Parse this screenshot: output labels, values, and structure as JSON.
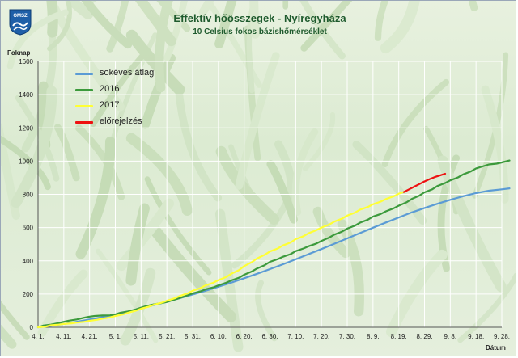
{
  "chart_data": {
    "type": "line",
    "title": "Effektív hőösszegek - Nyíregyháza",
    "subtitle": "10 Celsius fokos bázishőmérséklet",
    "ylabel": "Foknap",
    "xlabel": "Dátum",
    "logo_text": "OMSZ",
    "ylim": [
      0,
      1600
    ],
    "yticks": [
      0,
      200,
      400,
      600,
      800,
      1000,
      1200,
      1400,
      1600
    ],
    "xlim": [
      0,
      180
    ],
    "xticks": [
      {
        "x": 0,
        "label": "4. 1."
      },
      {
        "x": 10,
        "label": "4. 11."
      },
      {
        "x": 20,
        "label": "4. 21."
      },
      {
        "x": 30,
        "label": "5. 1."
      },
      {
        "x": 40,
        "label": "5. 11."
      },
      {
        "x": 50,
        "label": "5. 21."
      },
      {
        "x": 60,
        "label": "5. 31."
      },
      {
        "x": 70,
        "label": "6. 10."
      },
      {
        "x": 80,
        "label": "6. 20."
      },
      {
        "x": 90,
        "label": "6. 30."
      },
      {
        "x": 100,
        "label": "7. 10."
      },
      {
        "x": 110,
        "label": "7. 20."
      },
      {
        "x": 120,
        "label": "7. 30."
      },
      {
        "x": 130,
        "label": "8. 9."
      },
      {
        "x": 140,
        "label": "8. 19."
      },
      {
        "x": 150,
        "label": "8. 29."
      },
      {
        "x": 160,
        "label": "9. 8."
      },
      {
        "x": 170,
        "label": "9. 18."
      },
      {
        "x": 180,
        "label": "9. 28."
      }
    ],
    "grid": true,
    "legend_position": "top-left",
    "series": [
      {
        "name": "sokéves átlag",
        "color": "#5b9bd5",
        "x": [
          0,
          5,
          10,
          15,
          20,
          25,
          30,
          35,
          40,
          45,
          50,
          55,
          60,
          65,
          70,
          75,
          80,
          85,
          90,
          95,
          100,
          105,
          110,
          115,
          120,
          125,
          130,
          135,
          140,
          145,
          150,
          155,
          160,
          165,
          170,
          175,
          180,
          183
        ],
        "y": [
          0,
          9,
          20,
          33,
          47,
          61,
          77,
          95,
          114,
          134,
          154,
          175,
          197,
          220,
          244,
          269,
          295,
          322,
          350,
          379,
          409,
          440,
          471,
          503,
          535,
          567,
          599,
          631,
          661,
          691,
          718,
          743,
          767,
          789,
          808,
          822,
          830,
          836
        ]
      },
      {
        "name": "2016",
        "color": "#3c9a3c",
        "x": [
          0,
          2,
          5,
          8,
          10,
          12,
          15,
          18,
          20,
          22,
          25,
          28,
          30,
          32,
          35,
          38,
          40,
          42,
          45,
          48,
          50,
          52,
          55,
          58,
          60,
          63,
          65,
          68,
          70,
          73,
          75,
          78,
          80,
          83,
          85,
          88,
          90,
          93,
          95,
          98,
          100,
          103,
          105,
          108,
          110,
          113,
          115,
          118,
          120,
          123,
          125,
          128,
          130,
          133,
          135,
          138,
          140,
          143,
          145,
          148,
          150,
          153,
          155,
          158,
          160,
          163,
          165,
          168,
          170,
          173,
          175,
          178,
          180,
          183
        ],
        "y": [
          0,
          10,
          16,
          26,
          33,
          40,
          47,
          58,
          64,
          68,
          71,
          72,
          78,
          88,
          96,
          108,
          118,
          128,
          138,
          146,
          152,
          162,
          176,
          192,
          204,
          216,
          228,
          240,
          252,
          268,
          282,
          298,
          316,
          336,
          354,
          374,
          394,
          410,
          424,
          440,
          458,
          474,
          488,
          504,
          520,
          540,
          558,
          576,
          594,
          612,
          630,
          648,
          666,
          682,
          698,
          716,
          732,
          752,
          772,
          792,
          812,
          830,
          850,
          868,
          884,
          902,
          920,
          938,
          956,
          970,
          980,
          985,
          992,
          1004
        ]
      },
      {
        "name": "2017",
        "color": "#ffff33",
        "x": [
          0,
          3,
          5,
          8,
          10,
          13,
          15,
          18,
          20,
          23,
          25,
          28,
          30,
          33,
          35,
          38,
          40,
          43,
          45,
          48,
          50,
          53,
          55,
          58,
          60,
          63,
          65,
          68,
          70,
          73,
          75,
          78,
          80,
          83,
          85,
          88,
          90,
          93,
          95,
          98,
          100,
          103,
          105,
          108,
          110,
          113,
          115,
          118,
          120,
          123,
          125,
          128,
          130,
          133,
          135,
          138,
          140,
          142
        ],
        "y": [
          0,
          4,
          12,
          16,
          20,
          24,
          28,
          33,
          39,
          45,
          52,
          60,
          68,
          78,
          88,
          100,
          112,
          124,
          136,
          148,
          160,
          174,
          188,
          204,
          220,
          236,
          252,
          268,
          284,
          302,
          322,
          344,
          368,
          392,
          414,
          436,
          456,
          474,
          492,
          510,
          530,
          548,
          566,
          584,
          600,
          618,
          636,
          654,
          672,
          690,
          708,
          724,
          740,
          756,
          772,
          788,
          804,
          814
        ]
      },
      {
        "name": "előrejelzés",
        "color": "#ee1111",
        "x": [
          142,
          144,
          146,
          148,
          150,
          152,
          154,
          156,
          158
        ],
        "y": [
          814,
          830,
          846,
          862,
          878,
          892,
          904,
          914,
          924
        ]
      }
    ]
  }
}
